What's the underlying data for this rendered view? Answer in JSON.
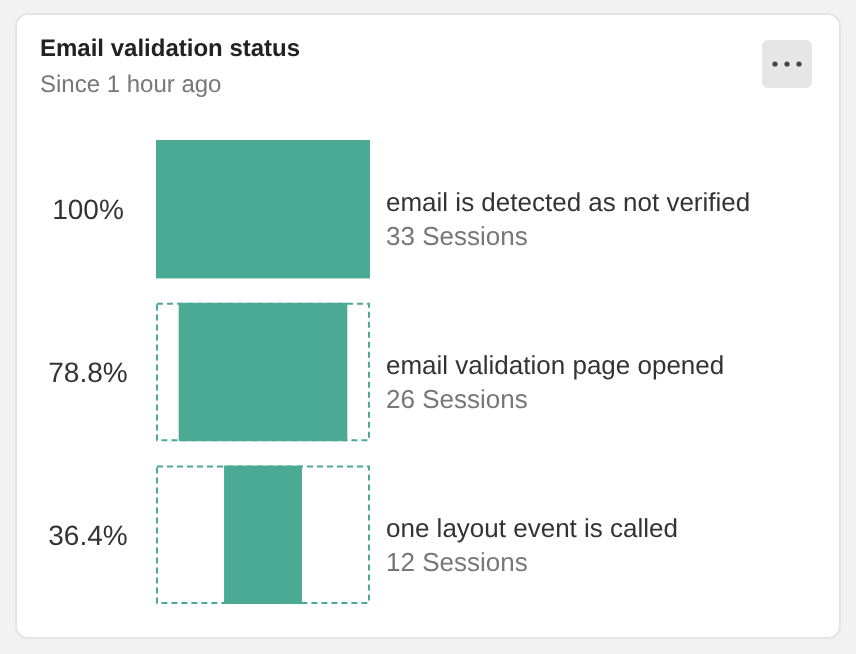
{
  "chart_data": {
    "type": "other",
    "title": "Email validation status",
    "subtitle": "Since 1 hour ago",
    "categories": [
      "email is detected as not verified",
      "email validation page opened",
      "one layout event is called"
    ],
    "values": [
      100,
      78.8,
      36.4
    ],
    "value_labels": [
      "100%",
      "78.8%",
      "36.4%"
    ],
    "color": "#4aaa94",
    "annotations": [
      {
        "text": "33 Sessions",
        "x": "email is detected as not verified"
      },
      {
        "text": "26 Sessions",
        "x": "email validation page opened"
      },
      {
        "text": "12 Sessions",
        "x": "one layout event is called"
      }
    ]
  }
}
